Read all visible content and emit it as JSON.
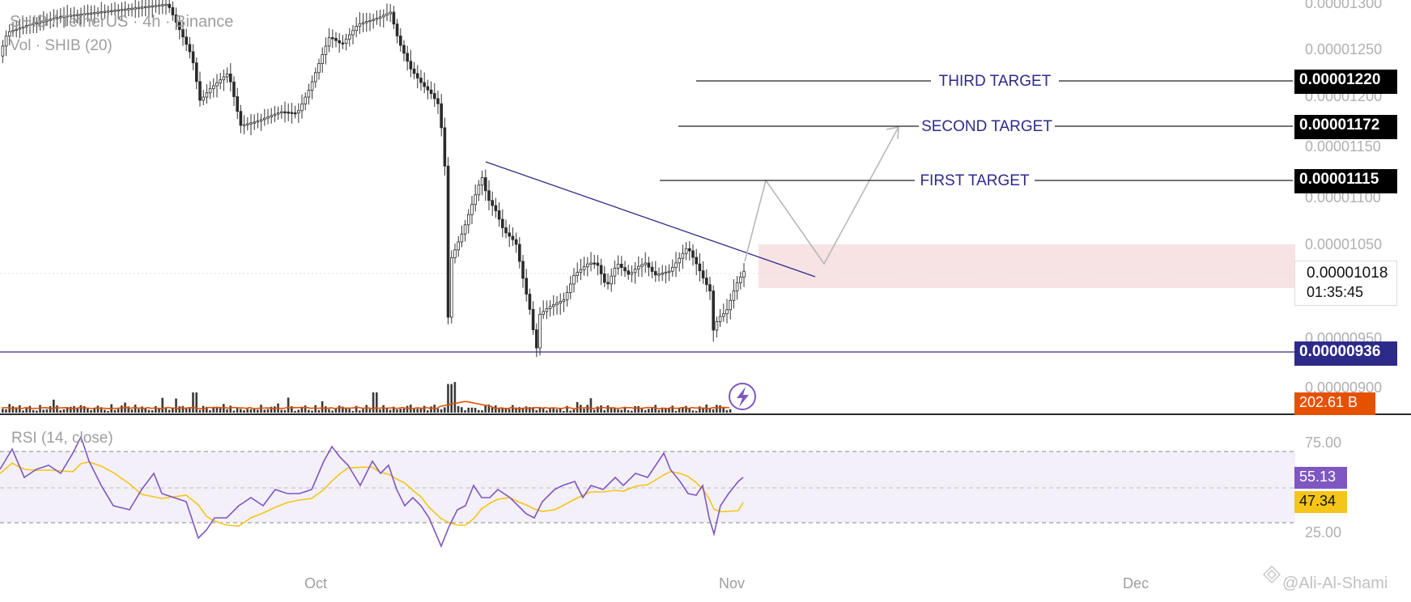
{
  "header": {
    "symbol_title": "SHIB / TetherUS · 4h · Binance",
    "volume_label": "Vol · SHIB (20)"
  },
  "price_axis": {
    "ticks": [
      "0.00001300",
      "0.00001250",
      "0.00001200",
      "0.00001150",
      "0.00001100",
      "0.00001050",
      "0.00000950",
      "0.00000900"
    ]
  },
  "targets": [
    {
      "label": "THIRD TARGET",
      "price": "0.00001220",
      "value": 1.22e-05
    },
    {
      "label": "SECOND TARGET",
      "price": "0.00001172",
      "value": 1.172e-05
    },
    {
      "label": "FIRST TARGET",
      "price": "0.00001115",
      "value": 1.115e-05
    }
  ],
  "current_price": {
    "value": "0.00001018",
    "countdown": "01:35:45"
  },
  "support": {
    "price": "0.00000936",
    "value": 9.36e-06
  },
  "volume_badge": "202.61 B",
  "rsi": {
    "label": "RSI (14, close)",
    "value": "55.13",
    "ma_value": "47.34",
    "levels": [
      "75.00",
      "25.00"
    ]
  },
  "time_axis": [
    "Oct",
    "Nov",
    "Dec"
  ],
  "watermark": "@Ali-Al-Shami",
  "colors": {
    "up": "#555555",
    "down": "#333333",
    "annotation": "#2e2a8a",
    "rsi": "#7e57c2",
    "rsi_ma": "#f5c518",
    "vol_ma": "#e65100",
    "zone": "#f4d6d6"
  },
  "chart_data": {
    "type": "candlestick",
    "price_range": [
      8.8e-06,
      1.3e-05
    ],
    "rsi_range": [
      0,
      100
    ],
    "notes": "SHIB/USDT 4h candles; descending trendline from ~0.00001130 to ~0.00001030; projected path toward targets"
  }
}
